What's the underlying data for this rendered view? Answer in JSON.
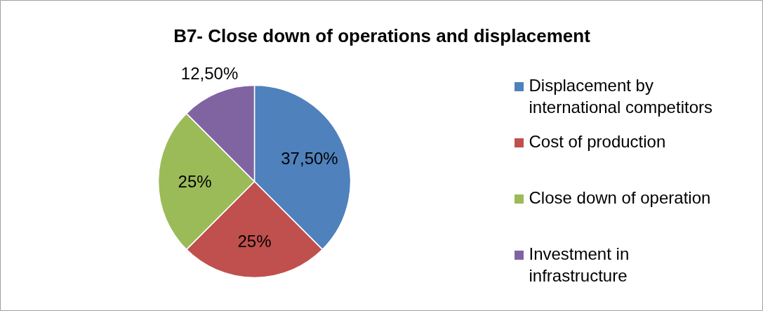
{
  "chart_data": {
    "type": "pie",
    "title": "B7- Close down of operations and displacement",
    "categories": [
      "Displacement by international competitors",
      "Cost of production",
      "Close down of operation",
      "Investment in infrastructure"
    ],
    "values": [
      37.5,
      25,
      25,
      12.5
    ],
    "colors": [
      "#4f81bd",
      "#c0504d",
      "#9bbb59",
      "#8064a2"
    ],
    "value_labels": [
      "37,50%",
      "25%",
      "25%",
      "12,50%"
    ],
    "legend": "right"
  }
}
